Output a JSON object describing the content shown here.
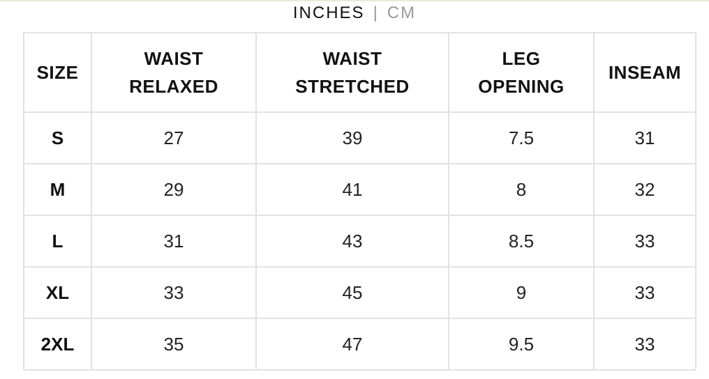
{
  "units": {
    "options": [
      "INCHES",
      "CM"
    ],
    "separator": "|"
  },
  "table": {
    "header": [
      [
        "SIZE"
      ],
      [
        "WAIST",
        "RELAXED"
      ],
      [
        "WAIST",
        "STRETCHED"
      ],
      [
        "LEG",
        "OPENING"
      ],
      [
        "INSEAM"
      ]
    ],
    "rows": [
      [
        "S",
        27,
        39,
        7.5,
        31
      ],
      [
        "M",
        29,
        41,
        8,
        32
      ],
      [
        "L",
        31,
        43,
        8.5,
        33
      ],
      [
        "XL",
        33,
        45,
        9,
        33
      ],
      [
        "2XL",
        35,
        47,
        9.5,
        33
      ]
    ]
  }
}
